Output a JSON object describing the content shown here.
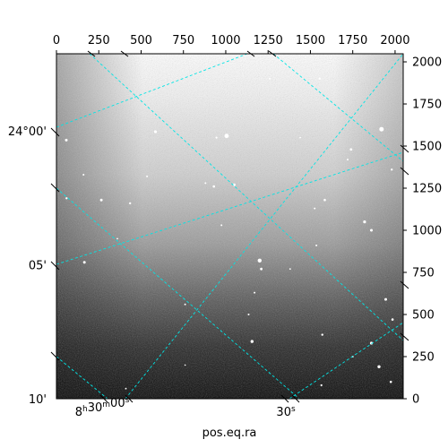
{
  "chart_data": {
    "type": "heatmap",
    "title": "",
    "xlabel": "pos.eq.ra",
    "ylabel": "",
    "pixel_axes": {
      "x_top": {
        "range": [
          0,
          2048
        ],
        "ticks": [
          0,
          250,
          500,
          750,
          1000,
          1250,
          1500,
          1750,
          2000
        ]
      },
      "y_right": {
        "range": [
          0,
          2048
        ],
        "ticks": [
          0,
          250,
          500,
          750,
          1000,
          1250,
          1500,
          1750,
          2000
        ]
      }
    },
    "world_axes": {
      "ra_bottom": {
        "ticks": [
          {
            "pix_x": 270,
            "label_main": "8",
            "sup1": "h",
            "mid": "30",
            "sup2": "m",
            "tail": "00",
            "sup3": "s"
          },
          {
            "pix_x": 1355,
            "label_main": "30",
            "sup1": "",
            "mid": "",
            "sup2": "",
            "tail": "",
            "sup3": "s"
          }
        ]
      },
      "dec_left": {
        "ticks": [
          {
            "pix_y": 1590,
            "label": "24°00'"
          },
          {
            "pix_y": 795,
            "label": "05'"
          },
          {
            "pix_y": 0,
            "label": "10'"
          }
        ]
      }
    },
    "grid": true,
    "grid_color": "#00e5e5",
    "image_colormap": "gray",
    "background_gradient": "bright top, dark bottom",
    "stars": [
      [
        1920,
        1600,
        2.5
      ],
      [
        1005,
        1560,
        2.4
      ],
      [
        585,
        1585,
        1.6
      ],
      [
        1555,
        1900,
        1.2
      ],
      [
        945,
        1550,
        1.1
      ],
      [
        58,
        1535,
        1.5
      ],
      [
        1740,
        1480,
        1.4
      ],
      [
        1720,
        1420,
        1.0
      ],
      [
        1050,
        1270,
        1.5
      ],
      [
        930,
        1260,
        1.3
      ],
      [
        880,
        1280,
        1.0
      ],
      [
        535,
        1320,
        1.0
      ],
      [
        265,
        1180,
        1.5
      ],
      [
        435,
        1160,
        1.2
      ],
      [
        1585,
        1180,
        1.3
      ],
      [
        1525,
        1130,
        1.0
      ],
      [
        1820,
        1050,
        1.6
      ],
      [
        1860,
        1000,
        1.5
      ],
      [
        975,
        1030,
        1.0
      ],
      [
        360,
        950,
        0.9
      ],
      [
        1535,
        910,
        1.0
      ],
      [
        1200,
        820,
        2.2
      ],
      [
        1210,
        770,
        1.4
      ],
      [
        165,
        810,
        1.5
      ],
      [
        1170,
        630,
        1.0
      ],
      [
        1380,
        770,
        0.9
      ],
      [
        1945,
        590,
        1.5
      ],
      [
        1135,
        500,
        1.0
      ],
      [
        760,
        560,
        1.0
      ],
      [
        1985,
        470,
        1.3
      ],
      [
        1155,
        340,
        1.7
      ],
      [
        1860,
        330,
        1.6
      ],
      [
        1570,
        380,
        1.2
      ],
      [
        1750,
        250,
        1.0
      ],
      [
        1905,
        190,
        1.7
      ],
      [
        1975,
        100,
        1.3
      ],
      [
        1565,
        80,
        1.1
      ],
      [
        760,
        200,
        0.8
      ],
      [
        410,
        60,
        0.9
      ],
      [
        1980,
        1360,
        1.2
      ],
      [
        1440,
        1550,
        0.9
      ],
      [
        1260,
        1900,
        1.0
      ],
      [
        160,
        1330,
        1.0
      ],
      [
        60,
        1190,
        1.2
      ]
    ]
  }
}
